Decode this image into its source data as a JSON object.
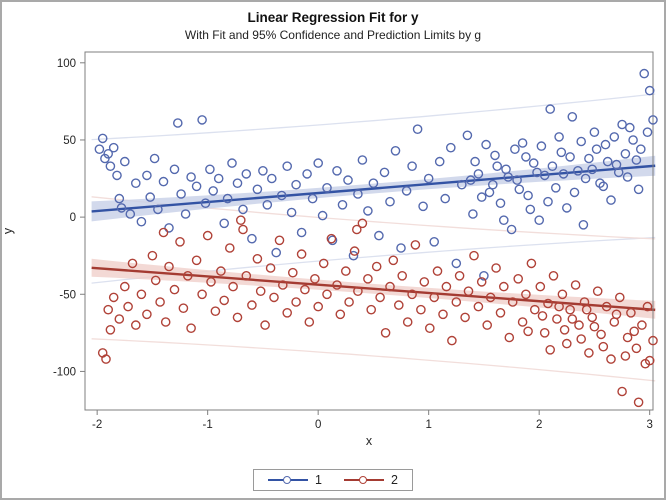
{
  "figure": {
    "kind": "sas-regression-plot"
  },
  "colors": {
    "frame": "#7f7f7f",
    "tick_text": "#262626",
    "outer_border": "#a9a9a9"
  },
  "chart_data": {
    "type": "scatter",
    "title": "Linear Regression Fit for y",
    "subtitle": "With Fit and 95% Confidence and Prediction Limits by g",
    "xlabel": "x",
    "ylabel": "y",
    "x_range": [
      -2.11,
      3.03
    ],
    "y_range": [
      -125,
      107
    ],
    "grid": false,
    "legend_position": "bottom-center",
    "x_ticks": {
      "values": [
        -2,
        -1,
        0,
        1,
        2,
        3
      ],
      "labels": [
        "-2",
        "-1",
        "0",
        "1",
        "2",
        "3"
      ]
    },
    "y_ticks": {
      "values": [
        100,
        50,
        0,
        -50,
        -100
      ],
      "labels": [
        "100",
        "50",
        "0",
        "-50",
        "-100"
      ]
    },
    "groups": [
      {
        "label": "1",
        "marker_color": "#5469ae",
        "line_color": "#3353a4",
        "band_color": "#c7d0e7",
        "pl_color": "#dce1ef",
        "fit": {
          "intercept": 15.6,
          "slope": 5.8,
          "x_min": -2.05,
          "x_max": 3.05
        },
        "ci_half": {
          "mid": 3.2,
          "edge": 6.5
        },
        "pl_half": {
          "mid": 44,
          "edge": 46.5
        },
        "points": [
          [
            -1.98,
            44
          ],
          [
            -1.95,
            51
          ],
          [
            -1.93,
            38
          ],
          [
            -1.9,
            41
          ],
          [
            -1.88,
            33
          ],
          [
            -1.85,
            45
          ],
          [
            -1.82,
            27
          ],
          [
            -1.8,
            12
          ],
          [
            -1.78,
            6
          ],
          [
            -1.75,
            36
          ],
          [
            -1.7,
            2
          ],
          [
            -1.65,
            22
          ],
          [
            -1.6,
            -3
          ],
          [
            -1.55,
            27
          ],
          [
            -1.52,
            13
          ],
          [
            -1.48,
            38
          ],
          [
            -1.45,
            5
          ],
          [
            -1.4,
            23
          ],
          [
            -1.35,
            -7
          ],
          [
            -1.3,
            31
          ],
          [
            -1.27,
            61
          ],
          [
            -1.24,
            15
          ],
          [
            -1.2,
            2
          ],
          [
            -1.15,
            26
          ],
          [
            -1.1,
            20
          ],
          [
            -1.05,
            63
          ],
          [
            -1.02,
            9
          ],
          [
            -0.98,
            31
          ],
          [
            -0.95,
            17
          ],
          [
            -0.9,
            25
          ],
          [
            -0.85,
            -4
          ],
          [
            -0.82,
            12
          ],
          [
            -0.78,
            35
          ],
          [
            -0.73,
            22
          ],
          [
            -0.68,
            5
          ],
          [
            -0.65,
            28
          ],
          [
            -0.6,
            -14
          ],
          [
            -0.55,
            18
          ],
          [
            -0.5,
            30
          ],
          [
            -0.46,
            8
          ],
          [
            -0.42,
            25
          ],
          [
            -0.38,
            -23
          ],
          [
            -0.33,
            14
          ],
          [
            -0.28,
            33
          ],
          [
            -0.24,
            3
          ],
          [
            -0.2,
            21
          ],
          [
            -0.15,
            -10
          ],
          [
            -0.1,
            28
          ],
          [
            -0.05,
            12
          ],
          [
            0,
            35
          ],
          [
            0.04,
            1
          ],
          [
            0.08,
            19
          ],
          [
            0.13,
            -15
          ],
          [
            0.17,
            30
          ],
          [
            0.22,
            8
          ],
          [
            0.27,
            24
          ],
          [
            0.32,
            -25
          ],
          [
            0.36,
            15
          ],
          [
            0.4,
            37
          ],
          [
            0.45,
            4
          ],
          [
            0.5,
            22
          ],
          [
            0.55,
            -12
          ],
          [
            0.6,
            29
          ],
          [
            0.65,
            10
          ],
          [
            0.7,
            43
          ],
          [
            0.75,
            -20
          ],
          [
            0.8,
            17
          ],
          [
            0.85,
            33
          ],
          [
            0.9,
            57
          ],
          [
            0.95,
            7
          ],
          [
            1,
            25
          ],
          [
            1.05,
            -16
          ],
          [
            1.1,
            36
          ],
          [
            1.15,
            12
          ],
          [
            1.2,
            45
          ],
          [
            1.25,
            -30
          ],
          [
            1.3,
            21
          ],
          [
            1.35,
            53
          ],
          [
            1.4,
            2
          ],
          [
            1.45,
            28
          ],
          [
            1.5,
            -38
          ],
          [
            1.55,
            16
          ],
          [
            1.6,
            40
          ],
          [
            1.65,
            9
          ],
          [
            1.7,
            31
          ],
          [
            1.75,
            -8
          ],
          [
            1.8,
            24
          ],
          [
            1.85,
            48
          ],
          [
            1.9,
            14
          ],
          [
            1.95,
            35
          ],
          [
            2,
            -2
          ],
          [
            2.05,
            27
          ],
          [
            2.1,
            70
          ],
          [
            2.15,
            19
          ],
          [
            2.2,
            42
          ],
          [
            2.25,
            6
          ],
          [
            2.3,
            65
          ],
          [
            2.35,
            30
          ],
          [
            2.4,
            -5
          ],
          [
            2.45,
            38
          ],
          [
            2.5,
            55
          ],
          [
            2.55,
            22
          ],
          [
            2.6,
            47
          ],
          [
            2.65,
            11
          ],
          [
            2.7,
            34
          ],
          [
            2.75,
            60
          ],
          [
            2.8,
            26
          ],
          [
            2.85,
            50
          ],
          [
            2.9,
            18
          ],
          [
            2.95,
            93
          ],
          [
            3,
            82
          ],
          [
            3.03,
            63
          ],
          [
            2.98,
            55
          ],
          [
            2.92,
            44
          ],
          [
            2.88,
            37
          ],
          [
            2.82,
            58
          ],
          [
            2.78,
            41
          ],
          [
            2.72,
            29
          ],
          [
            2.68,
            52
          ],
          [
            2.62,
            36
          ],
          [
            2.58,
            20
          ],
          [
            2.52,
            44
          ],
          [
            2.48,
            31
          ],
          [
            2.42,
            25
          ],
          [
            2.38,
            49
          ],
          [
            2.32,
            16
          ],
          [
            2.28,
            39
          ],
          [
            2.22,
            28
          ],
          [
            2.18,
            52
          ],
          [
            2.12,
            33
          ],
          [
            2.08,
            10
          ],
          [
            2.02,
            46
          ],
          [
            1.98,
            29
          ],
          [
            1.92,
            5
          ],
          [
            1.88,
            39
          ],
          [
            1.82,
            18
          ],
          [
            1.78,
            44
          ],
          [
            1.72,
            26
          ],
          [
            1.68,
            -2
          ],
          [
            1.62,
            33
          ],
          [
            1.58,
            21
          ],
          [
            1.52,
            47
          ],
          [
            1.48,
            13
          ],
          [
            1.42,
            36
          ],
          [
            1.38,
            24
          ]
        ]
      },
      {
        "label": "2",
        "marker_color": "#b04238",
        "line_color": "#a43b32",
        "band_color": "#f0cfcb",
        "pl_color": "#f2dedb",
        "fit": {
          "intercept": -43.8,
          "slope": -5.35,
          "x_min": -2.05,
          "x_max": 3.05
        },
        "ci_half": {
          "mid": 3.2,
          "edge": 5.8
        },
        "pl_half": {
          "mid": 43.5,
          "edge": 46
        },
        "points": [
          [
            -1.95,
            -88
          ],
          [
            -1.92,
            -92
          ],
          [
            -1.9,
            -60
          ],
          [
            -1.88,
            -73
          ],
          [
            -1.85,
            -52
          ],
          [
            -1.8,
            -66
          ],
          [
            -1.75,
            -45
          ],
          [
            -1.72,
            -58
          ],
          [
            -1.68,
            -30
          ],
          [
            -1.65,
            -70
          ],
          [
            -1.6,
            -50
          ],
          [
            -1.55,
            -63
          ],
          [
            -1.5,
            -25
          ],
          [
            -1.47,
            -41
          ],
          [
            -1.43,
            -55
          ],
          [
            -1.4,
            -10
          ],
          [
            -1.38,
            -68
          ],
          [
            -1.35,
            -32
          ],
          [
            -1.3,
            -47
          ],
          [
            -1.25,
            -16
          ],
          [
            -1.22,
            -59
          ],
          [
            -1.18,
            -38
          ],
          [
            -1.15,
            -72
          ],
          [
            -1.1,
            -28
          ],
          [
            -1.05,
            -50
          ],
          [
            -1,
            -12
          ],
          [
            -0.97,
            -42
          ],
          [
            -0.93,
            -61
          ],
          [
            -0.88,
            -35
          ],
          [
            -0.85,
            -54
          ],
          [
            -0.8,
            -20
          ],
          [
            -0.77,
            -45
          ],
          [
            -0.73,
            -65
          ],
          [
            -0.7,
            -2
          ],
          [
            -0.68,
            -8
          ],
          [
            -0.65,
            -38
          ],
          [
            -0.6,
            -57
          ],
          [
            -0.55,
            -27
          ],
          [
            -0.52,
            -48
          ],
          [
            -0.48,
            -70
          ],
          [
            -0.43,
            -33
          ],
          [
            -0.4,
            -52
          ],
          [
            -0.35,
            -15
          ],
          [
            -0.32,
            -44
          ],
          [
            -0.28,
            -62
          ],
          [
            -0.23,
            -36
          ],
          [
            -0.2,
            -55
          ],
          [
            -0.15,
            -24
          ],
          [
            -0.12,
            -47
          ],
          [
            -0.08,
            -68
          ],
          [
            -0.03,
            -40
          ],
          [
            0,
            -58
          ],
          [
            0.05,
            -30
          ],
          [
            0.08,
            -50
          ],
          [
            0.12,
            -14
          ],
          [
            0.17,
            -44
          ],
          [
            0.2,
            -63
          ],
          [
            0.25,
            -35
          ],
          [
            0.28,
            -55
          ],
          [
            0.33,
            -22
          ],
          [
            0.35,
            -8
          ],
          [
            0.36,
            -48
          ],
          [
            0.4,
            -4
          ],
          [
            0.45,
            -40
          ],
          [
            0.48,
            -60
          ],
          [
            0.53,
            -32
          ],
          [
            0.56,
            -52
          ],
          [
            0.61,
            -75
          ],
          [
            0.65,
            -45
          ],
          [
            0.68,
            -28
          ],
          [
            0.73,
            -57
          ],
          [
            0.76,
            -38
          ],
          [
            0.81,
            -68
          ],
          [
            0.85,
            -50
          ],
          [
            0.88,
            -18
          ],
          [
            0.93,
            -60
          ],
          [
            0.96,
            -42
          ],
          [
            1.01,
            -72
          ],
          [
            1.05,
            -52
          ],
          [
            1.08,
            -35
          ],
          [
            1.13,
            -63
          ],
          [
            1.16,
            -45
          ],
          [
            1.21,
            -80
          ],
          [
            1.25,
            -55
          ],
          [
            1.28,
            -38
          ],
          [
            1.33,
            -65
          ],
          [
            1.36,
            -48
          ],
          [
            1.41,
            -25
          ],
          [
            1.45,
            -58
          ],
          [
            1.48,
            -42
          ],
          [
            1.53,
            -70
          ],
          [
            1.56,
            -52
          ],
          [
            1.61,
            -33
          ],
          [
            1.65,
            -62
          ],
          [
            1.68,
            -45
          ],
          [
            1.73,
            -78
          ],
          [
            1.76,
            -55
          ],
          [
            1.81,
            -40
          ],
          [
            1.85,
            -68
          ],
          [
            1.88,
            -50
          ],
          [
            1.93,
            -30
          ],
          [
            1.96,
            -60
          ],
          [
            2.01,
            -45
          ],
          [
            2.05,
            -75
          ],
          [
            2.08,
            -56
          ],
          [
            2.13,
            -38
          ],
          [
            2.16,
            -66
          ],
          [
            2.21,
            -50
          ],
          [
            2.25,
            -82
          ],
          [
            2.28,
            -60
          ],
          [
            2.33,
            -44
          ],
          [
            2.36,
            -70
          ],
          [
            2.41,
            -55
          ],
          [
            2.45,
            -88
          ],
          [
            2.48,
            -65
          ],
          [
            2.53,
            -48
          ],
          [
            2.56,
            -76
          ],
          [
            2.61,
            -58
          ],
          [
            2.65,
            -92
          ],
          [
            2.68,
            -68
          ],
          [
            2.73,
            -52
          ],
          [
            2.75,
            -113
          ],
          [
            2.8,
            -78
          ],
          [
            2.83,
            -62
          ],
          [
            2.88,
            -85
          ],
          [
            2.9,
            -120
          ],
          [
            2.93,
            -70
          ],
          [
            2.96,
            -95
          ],
          [
            3,
            -93
          ],
          [
            3.03,
            -80
          ],
          [
            2.98,
            -58
          ],
          [
            2.86,
            -74
          ],
          [
            2.78,
            -90
          ],
          [
            2.7,
            -63
          ],
          [
            2.58,
            -84
          ],
          [
            2.5,
            -71
          ],
          [
            2.43,
            -60
          ],
          [
            2.38,
            -79
          ],
          [
            2.3,
            -66
          ],
          [
            2.23,
            -73
          ],
          [
            2.18,
            -58
          ],
          [
            2.1,
            -86
          ],
          [
            2.03,
            -64
          ],
          [
            1.9,
            -74
          ]
        ]
      }
    ]
  }
}
